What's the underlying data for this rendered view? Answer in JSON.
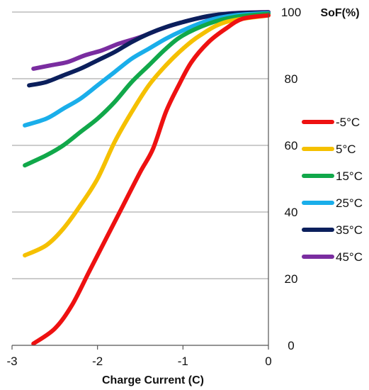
{
  "chart_data": {
    "type": "line",
    "title": "",
    "xlabel": "Charge Current (C)",
    "ylabel": "SoF(%)",
    "xlim": [
      -3,
      0
    ],
    "ylim": [
      0,
      100
    ],
    "xticks": [
      {
        "value": -3,
        "label": "-3"
      },
      {
        "value": -2,
        "label": "-2"
      },
      {
        "value": -1,
        "label": "-1"
      },
      {
        "value": 0,
        "label": "0"
      }
    ],
    "yticks": [
      {
        "value": 0,
        "label": "0"
      },
      {
        "value": 20,
        "label": "20"
      },
      {
        "value": 40,
        "label": "40"
      },
      {
        "value": 60,
        "label": "60"
      },
      {
        "value": 80,
        "label": "80"
      },
      {
        "value": 100,
        "label": "100"
      }
    ],
    "grid": "horizontal",
    "legend_position": "right",
    "series": [
      {
        "name": "-5°C",
        "color": "#ee1111",
        "points": [
          [
            -2.75,
            0.5
          ],
          [
            -2.5,
            5
          ],
          [
            -2.3,
            12
          ],
          [
            -2.1,
            22
          ],
          [
            -1.9,
            32
          ],
          [
            -1.7,
            42
          ],
          [
            -1.5,
            52
          ],
          [
            -1.35,
            59
          ],
          [
            -1.2,
            70
          ],
          [
            -1.05,
            78
          ],
          [
            -0.9,
            85
          ],
          [
            -0.7,
            91
          ],
          [
            -0.5,
            95
          ],
          [
            -0.3,
            98
          ],
          [
            0,
            99
          ]
        ]
      },
      {
        "name": "5°C",
        "color": "#f5c000",
        "points": [
          [
            -2.85,
            27
          ],
          [
            -2.6,
            30
          ],
          [
            -2.4,
            35
          ],
          [
            -2.2,
            42
          ],
          [
            -2.0,
            50
          ],
          [
            -1.8,
            61
          ],
          [
            -1.6,
            70
          ],
          [
            -1.4,
            78
          ],
          [
            -1.2,
            84
          ],
          [
            -1.0,
            89
          ],
          [
            -0.8,
            93
          ],
          [
            -0.5,
            97
          ],
          [
            0,
            99
          ]
        ]
      },
      {
        "name": "15°C",
        "color": "#11a84a",
        "points": [
          [
            -2.85,
            54
          ],
          [
            -2.6,
            57
          ],
          [
            -2.4,
            60
          ],
          [
            -2.2,
            64
          ],
          [
            -2.0,
            68
          ],
          [
            -1.8,
            73
          ],
          [
            -1.6,
            79
          ],
          [
            -1.4,
            84
          ],
          [
            -1.2,
            89
          ],
          [
            -1.0,
            93
          ],
          [
            -0.7,
            96.5
          ],
          [
            -0.4,
            98.5
          ],
          [
            0,
            99.5
          ]
        ]
      },
      {
        "name": "25°C",
        "color": "#1aaeea",
        "points": [
          [
            -2.85,
            66
          ],
          [
            -2.6,
            68
          ],
          [
            -2.4,
            71
          ],
          [
            -2.2,
            74
          ],
          [
            -2.0,
            78
          ],
          [
            -1.8,
            82
          ],
          [
            -1.6,
            86
          ],
          [
            -1.4,
            89
          ],
          [
            -1.2,
            92
          ],
          [
            -1.0,
            94.5
          ],
          [
            -0.7,
            97.5
          ],
          [
            -0.4,
            99
          ],
          [
            0,
            99.7
          ]
        ]
      },
      {
        "name": "35°C",
        "color": "#0b1f5c",
        "points": [
          [
            -2.8,
            78
          ],
          [
            -2.6,
            79
          ],
          [
            -2.4,
            81
          ],
          [
            -2.2,
            83
          ],
          [
            -2.0,
            85.5
          ],
          [
            -1.8,
            88
          ],
          [
            -1.6,
            91
          ],
          [
            -1.4,
            93.5
          ],
          [
            -1.2,
            95.5
          ],
          [
            -1.0,
            97
          ],
          [
            -0.7,
            98.8
          ],
          [
            -0.4,
            99.6
          ],
          [
            0,
            99.9
          ]
        ]
      },
      {
        "name": "45°C",
        "color": "#7a2da0",
        "points": [
          [
            -2.75,
            83
          ],
          [
            -2.55,
            84
          ],
          [
            -2.35,
            85
          ],
          [
            -2.15,
            87
          ],
          [
            -1.95,
            88.5
          ],
          [
            -1.75,
            90.5
          ],
          [
            -1.5,
            92.5
          ],
          [
            -1.25,
            95
          ],
          [
            -1.0,
            97
          ],
          [
            -0.75,
            98.5
          ],
          [
            -0.45,
            99.6
          ],
          [
            0,
            100
          ]
        ]
      }
    ]
  }
}
